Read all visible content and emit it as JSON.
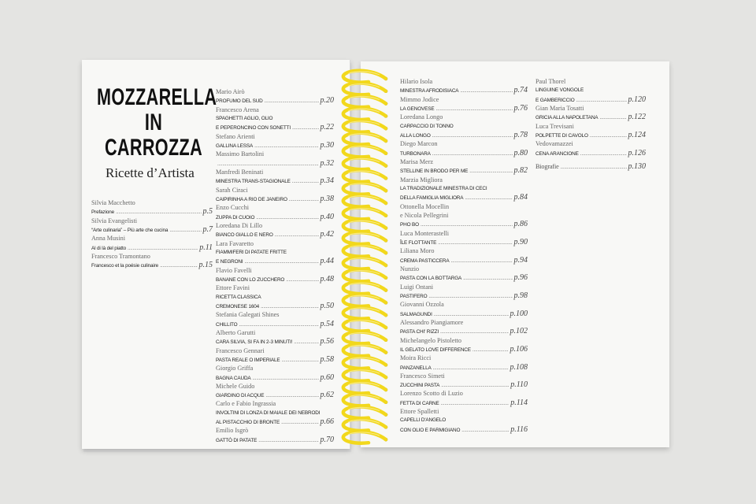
{
  "book": {
    "title_lines": [
      "MOZZARELLA",
      "IN",
      "CARROZZA"
    ],
    "subtitle": "Ricette d’Artista",
    "coil_color": "#f2d81c"
  },
  "columns": [
    [
      {
        "author": "Silvia Macchetto",
        "lines": [
          "Prefazione"
        ],
        "page": "p.5"
      },
      {
        "author": "Silvia Evangelisti",
        "lines": [
          "“Arte culinaria” – Più arte che cucina"
        ],
        "page": "p.7"
      },
      {
        "author": "Anna Musini",
        "lines": [
          "Al di là del piatto"
        ],
        "page": "p.11"
      },
      {
        "author": "Francesco Tramontano",
        "lines": [
          "Francesco et la poésie culinaire"
        ],
        "page": "p.15"
      }
    ],
    [
      {
        "author": "Mario Airò",
        "lines": [
          "PROFUMO DEL SUD"
        ],
        "page": "p.20"
      },
      {
        "author": "Francesco Arena",
        "lines": [
          "SPAGHETTI AGLIO, OLIO",
          "E PEPERONCINO CON SONETTI"
        ],
        "page": "p.22"
      },
      {
        "author": "Stefano Arienti",
        "lines": [
          "GALLINA LESSA"
        ],
        "page": "p.30"
      },
      {
        "author": "Massimo Bartolini",
        "lines": [
          ""
        ],
        "page": "p.32"
      },
      {
        "author": "Manfredi Beninati",
        "lines": [
          "MINESTRA TRANS-STAGIONALE"
        ],
        "page": "p.34"
      },
      {
        "author": "Sarah Ciraci",
        "lines": [
          "CAIPIRINHA A RIO DE JANEIRO"
        ],
        "page": "p.38"
      },
      {
        "author": "Enzo Cucchi",
        "lines": [
          "ZUPPA DI CUOIO"
        ],
        "page": "p.40"
      },
      {
        "author": "Loredana Di Lillo",
        "lines": [
          "BIANCO GIALLO E NERO"
        ],
        "page": "p.42"
      },
      {
        "author": "Lara Favaretto",
        "lines": [
          "FIAMMIFERI DI PATATE FRITTE",
          "E NEGRONI"
        ],
        "page": "p.44"
      },
      {
        "author": "Flavio Favelli",
        "lines": [
          "BANANE CON LO ZUCCHERO"
        ],
        "page": "p.48"
      },
      {
        "author": "Ettore Favini",
        "lines": [
          "RICETTA CLASSICA",
          "CREMONESE 1604"
        ],
        "page": "p.50"
      },
      {
        "author": "Stefania Galegati Shines",
        "lines": [
          "CHILLITO"
        ],
        "page": "p.54"
      },
      {
        "author": "Alberto Garutti",
        "lines": [
          "CARA SILVIA, SI FA IN 2-3 MINUTI!"
        ],
        "page": "p.56"
      },
      {
        "author": "Francesco Gennari",
        "lines": [
          "PASTA REALE O IMPERIALE"
        ],
        "page": "p.58"
      },
      {
        "author": "Giorgio Griffa",
        "lines": [
          "BAGNA CAUDA"
        ],
        "page": "p.60"
      },
      {
        "author": "Michele Guido",
        "lines": [
          "GIARDINO DI ACQUE"
        ],
        "page": "p.62"
      },
      {
        "author": "Carlo e Fabio Ingrassia",
        "lines": [
          "INVOLTINI DI LONZA DI MAIALE DEI NEBRODI",
          "AL PISTACCHIO DI BRONTE"
        ],
        "page": "p.66"
      },
      {
        "author": "Emilio Isgrò",
        "lines": [
          "GATTÒ DI PATATE"
        ],
        "page": "p.70"
      }
    ],
    [
      {
        "author": "Hilario Isola",
        "lines": [
          "MINESTRA AFRODISIACA"
        ],
        "page": "p.74"
      },
      {
        "author": "Mimmo Jodice",
        "lines": [
          "LA GENOVESE"
        ],
        "page": "p.76"
      },
      {
        "author": "Loredana Longo",
        "lines": [
          "CARPACCIO DI TONNO",
          "ALLA LONGO"
        ],
        "page": "p.78"
      },
      {
        "author": "Diego Marcon",
        "lines": [
          "TURBONARA"
        ],
        "page": "p.80"
      },
      {
        "author": "Marisa Merz",
        "lines": [
          "STELLINE IN BRODO PER ME"
        ],
        "page": "p.82"
      },
      {
        "author": "Marzia Migliora",
        "lines": [
          "LA TRADIZIONALE MINESTRA DI CECI",
          "DELLA FAMIGLIA MIGLIORA"
        ],
        "page": "p.84"
      },
      {
        "author": "Ottonella Mocellin",
        "author2": "e Nicola Pellegrini",
        "lines": [
          "PHO BO"
        ],
        "page": "p.86"
      },
      {
        "author": "Luca Monterastelli",
        "lines": [
          "ÎLE FLOTTANTE"
        ],
        "page": "p.90"
      },
      {
        "author": "Liliana Moro",
        "lines": [
          "CREMA PASTICCERA"
        ],
        "page": "p.94"
      },
      {
        "author": "Nunzio",
        "lines": [
          "PASTA CON LA BOTTARGA"
        ],
        "page": "p.96"
      },
      {
        "author": "Luigi Ontani",
        "lines": [
          "PASTIFERO"
        ],
        "page": "p.98"
      },
      {
        "author": "Giovanni Ozzola",
        "lines": [
          "SALMAGUNDI"
        ],
        "page": "p.100"
      },
      {
        "author": "Alessandro Piangiamore",
        "lines": [
          "PASTA CHI' RIZZI"
        ],
        "page": "p.102"
      },
      {
        "author": "Michelangelo Pistoletto",
        "lines": [
          "IL GELATO LOVE DIFFERENCE"
        ],
        "page": "p.106"
      },
      {
        "author": "Moira Ricci",
        "lines": [
          "PANZANELLA"
        ],
        "page": "p.108"
      },
      {
        "author": "Francesco Simeti",
        "lines": [
          "ZUCCHINI PASTA"
        ],
        "page": "p.110"
      },
      {
        "author": "Lorenzo Scotto di Luzio",
        "lines": [
          "FETTA DI CARNE"
        ],
        "page": "p.114"
      },
      {
        "author": "Ettore Spalletti",
        "lines": [
          "CAPELLI D'ANGELO",
          "CON OLIO E PARMIGIANO"
        ],
        "page": "p.116"
      }
    ],
    [
      {
        "author": "Paul Thorel",
        "lines": [
          "LINGUINE VONGOLE",
          "E GAMBERICCIO"
        ],
        "page": "p.120"
      },
      {
        "author": "Gian Maria Tosatti",
        "lines": [
          "GRICIA ALLA NAPOLETANA"
        ],
        "page": "p.122"
      },
      {
        "author": "Luca Trevisani",
        "lines": [
          "POLPETTE DI CAVOLO"
        ],
        "page": "p.124"
      },
      {
        "author": "Vedovamazzei",
        "lines": [
          "CENA ARANCIONE"
        ],
        "page": "p.126"
      },
      {
        "author": "",
        "lines": [
          "Biografie"
        ],
        "page": "p.130",
        "serif": true
      }
    ]
  ]
}
